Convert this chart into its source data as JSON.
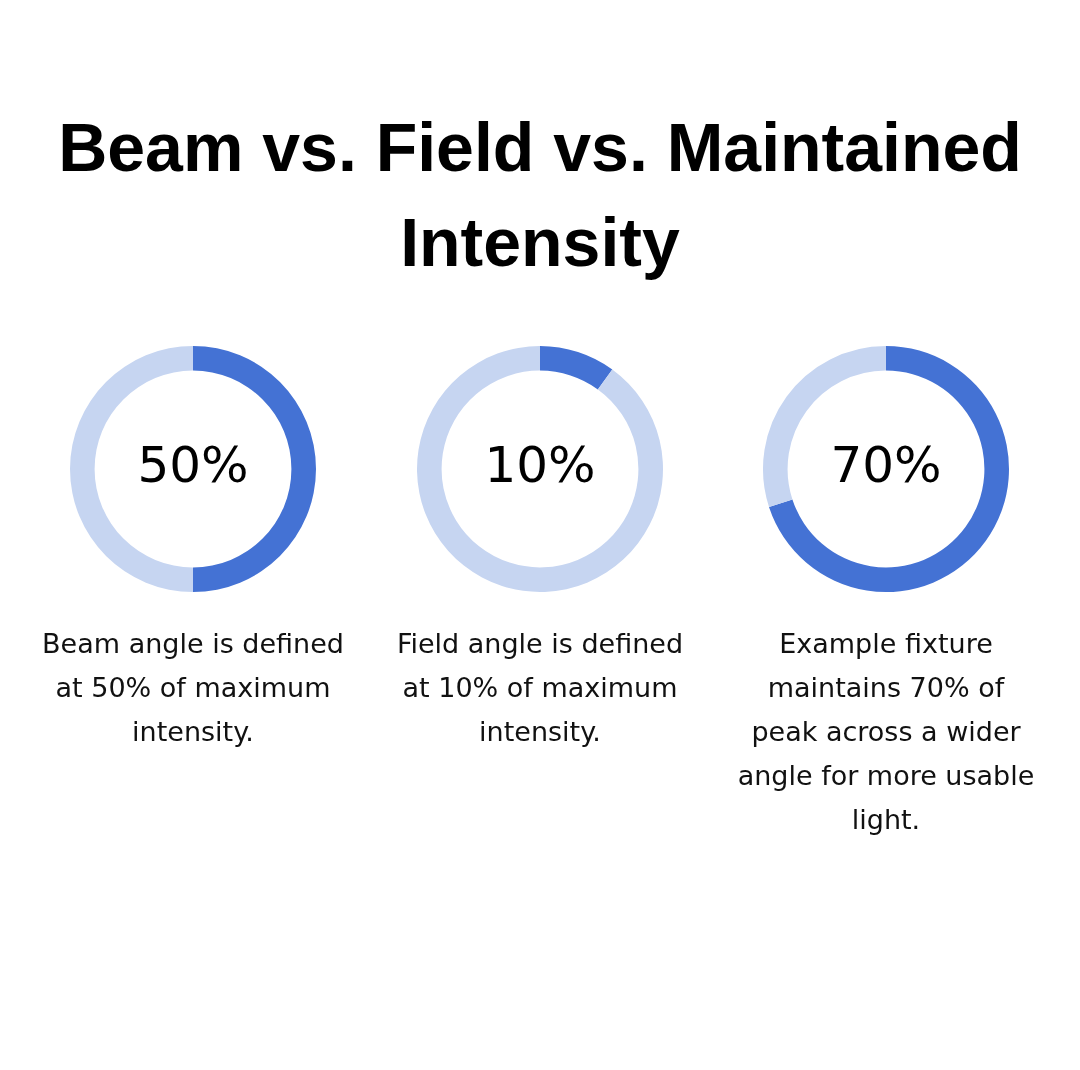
{
  "chart_data": [
    {
      "type": "donut",
      "title": "Beam vs. Field vs. Maintained Intensity",
      "categories": [
        null,
        null
      ],
      "values": [
        50,
        50
      ],
      "colors": [
        "#4472d4",
        "#c6d5f1"
      ],
      "value_labels": [
        "50%",
        null
      ],
      "annotations": [
        "Beam angle is defined at 50% of maximum intensity."
      ]
    },
    {
      "type": "donut",
      "categories": [
        null,
        null
      ],
      "values": [
        10,
        90
      ],
      "colors": [
        "#4472d4",
        "#c6d5f1"
      ],
      "value_labels": [
        "10%",
        null
      ],
      "annotations": [
        "Field angle is defined at 10% of maximum intensity."
      ]
    },
    {
      "type": "donut",
      "categories": [
        null,
        null
      ],
      "values": [
        70,
        30
      ],
      "colors": [
        "#4472d4",
        "#c6d5f1"
      ],
      "value_labels": [
        "70%",
        null
      ],
      "annotations": [
        "Example fixture maintains 70% of peak across a wider angle for more usable light."
      ]
    }
  ]
}
